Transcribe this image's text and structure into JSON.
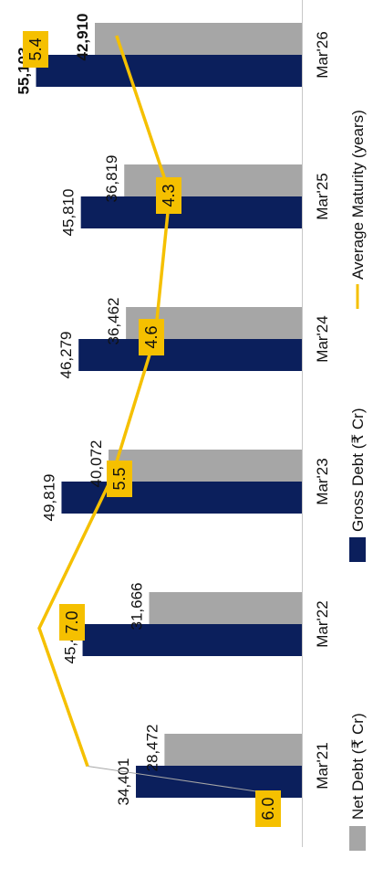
{
  "chart_data": {
    "type": "bar",
    "orientation": "rotated-90",
    "categories": [
      "Mar'21",
      "Mar'22",
      "Mar'23",
      "Mar'24",
      "Mar'25",
      "Mar'26"
    ],
    "series": [
      {
        "name": "Net Debt (₹ Cr)",
        "type": "bar",
        "color": "#a6a6a6",
        "values": [
          28472,
          31666,
          40072,
          36462,
          36819,
          42910
        ],
        "labels": [
          "28,472",
          "31,666",
          "40,072",
          "36,462",
          "36,819",
          "42,910"
        ]
      },
      {
        "name": "Gross Debt (₹ Cr)",
        "type": "bar",
        "color": "#0b1f5c",
        "values": [
          34401,
          45453,
          49819,
          46279,
          45810,
          55103
        ],
        "labels": [
          "34,401",
          "45,453",
          "49,819",
          "46,279",
          "45,810",
          "55,103"
        ]
      },
      {
        "name": "Average Maturity (years)",
        "type": "line",
        "color": "#f5c000",
        "values": [
          6.0,
          7.0,
          5.5,
          4.6,
          4.3,
          5.4
        ],
        "labels": [
          "6.0",
          "7.0",
          "5.5",
          "4.6",
          "4.3",
          "5.4"
        ]
      }
    ],
    "bold_labels": [
      "55,103",
      "42,910"
    ],
    "legend_position": "bottom",
    "grid": false
  }
}
